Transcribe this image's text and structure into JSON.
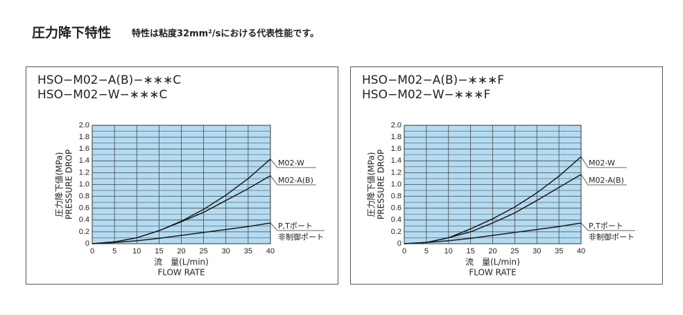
{
  "page_title": "圧力降下特性",
  "page_note": "特性は粘度32mm²/sにおける代表性能です。",
  "chart_data": [
    {
      "type": "line",
      "title": "HSO−M02−A(B)−∗∗∗C",
      "subtitle": "HSO−M02−W−∗∗∗C",
      "x_label": "流　量(L/min)",
      "x_label_2": "FLOW RATE",
      "y_label": "圧力降下値(MPa)",
      "y_label_2": "PRESSURE DROP",
      "x": [
        0,
        5,
        10,
        15,
        20,
        25,
        30,
        35,
        40
      ],
      "xlim": [
        0,
        40
      ],
      "xticks": [
        0,
        5,
        10,
        15,
        20,
        25,
        30,
        35,
        40
      ],
      "ylim": [
        0,
        2.0
      ],
      "yticks": [
        0,
        0.2,
        0.4,
        0.6,
        0.8,
        {
          "value": 1,
          "label": "1.0"
        },
        1.2,
        1.4,
        1.6,
        1.8,
        {
          "value": 2,
          "label": "2.0"
        }
      ],
      "minor_yticks": [
        0.1,
        0.3,
        0.5,
        0.7,
        0.9,
        1.1,
        1.3,
        1.5,
        1.7,
        1.9
      ],
      "grid": true,
      "background": "#b3dcf2",
      "series": [
        {
          "name": "M02-W",
          "color": "#1a1a1a",
          "values": [
            0,
            0.03,
            0.1,
            0.22,
            0.38,
            0.58,
            0.82,
            1.1,
            1.43
          ]
        },
        {
          "name": "M02-A(B)",
          "color": "#1a1a1a",
          "values": [
            0,
            0.03,
            0.1,
            0.22,
            0.37,
            0.53,
            0.73,
            0.93,
            1.15
          ]
        },
        {
          "name": "P,Tポート",
          "alt_name": "非制御ポート",
          "color": "#1a1a1a",
          "values": [
            0,
            0.02,
            0.05,
            0.09,
            0.14,
            0.19,
            0.24,
            0.29,
            0.35
          ]
        }
      ]
    },
    {
      "type": "line",
      "title": "HSO−M02−A(B)−∗∗∗F",
      "subtitle": "HSO−M02−W−∗∗∗F",
      "x_label": "流　量(L/min)",
      "x_label_2": "FLOW RATE",
      "y_label": "圧力降下値(MPa)",
      "y_label_2": "PRESSURE DROP",
      "x": [
        0,
        5,
        10,
        15,
        20,
        25,
        30,
        35,
        40
      ],
      "xlim": [
        0,
        40
      ],
      "xticks": [
        0,
        5,
        10,
        15,
        20,
        25,
        30,
        35,
        40
      ],
      "ylim": [
        0,
        2.0
      ],
      "yticks": [
        0,
        0.2,
        0.4,
        0.6,
        0.8,
        {
          "value": 1,
          "label": "1.0"
        },
        1.2,
        1.4,
        1.6,
        1.8,
        {
          "value": 2,
          "label": "2.0"
        }
      ],
      "minor_yticks": [
        0.1,
        0.3,
        0.5,
        0.7,
        0.9,
        1.1,
        1.3,
        1.5,
        1.7,
        1.9
      ],
      "grid": true,
      "background": "#b3dcf2",
      "series": [
        {
          "name": "M02-W",
          "color": "#1a1a1a",
          "values": [
            0,
            0.02,
            0.1,
            0.25,
            0.42,
            0.62,
            0.86,
            1.14,
            1.47
          ]
        },
        {
          "name": "M02-A(B)",
          "color": "#1a1a1a",
          "values": [
            0,
            0.02,
            0.1,
            0.2,
            0.35,
            0.52,
            0.73,
            0.95,
            1.17
          ]
        },
        {
          "name": "P,Tポート",
          "alt_name": "非制御ポート",
          "color": "#1a1a1a",
          "values": [
            0,
            0.02,
            0.05,
            0.09,
            0.14,
            0.19,
            0.24,
            0.29,
            0.35
          ]
        }
      ]
    }
  ]
}
